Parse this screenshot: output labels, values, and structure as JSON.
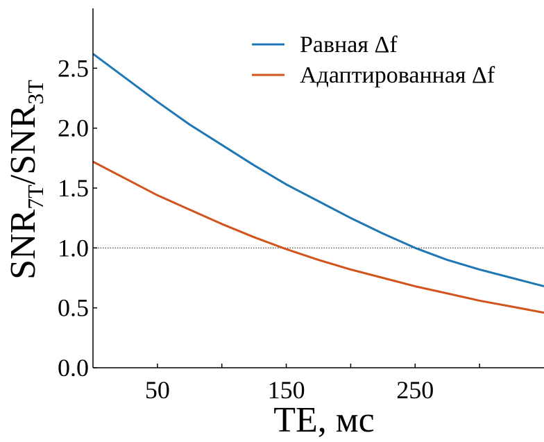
{
  "chart_data": {
    "type": "line",
    "title": "",
    "xlabel": "TE, мс",
    "ylabel": {
      "parts": [
        {
          "text": "SNR",
          "sub": false
        },
        {
          "text": "7T",
          "sub": true
        },
        {
          "text": "/SNR",
          "sub": false
        },
        {
          "text": "3T",
          "sub": true
        }
      ]
    },
    "xlim": [
      0,
      350
    ],
    "ylim": [
      0,
      3.0
    ],
    "x_ticks": [
      50,
      100,
      150,
      200,
      250,
      300
    ],
    "x_tick_labels": [
      "50",
      "",
      "150",
      "",
      "250",
      ""
    ],
    "y_ticks": [
      0,
      0.5,
      1.0,
      1.5,
      2.0,
      2.5
    ],
    "y_tick_labels": [
      "0.0",
      "0.5",
      "1.0",
      "1.5",
      "2.0",
      "2.5"
    ],
    "grid": false,
    "legend_position": "top-right",
    "reference_line": {
      "y": 1.0,
      "style": "dotted",
      "color": "#333333"
    },
    "series": [
      {
        "name": "Равная Δf",
        "color": "#1f77b4",
        "x": [
          0,
          25,
          50,
          75,
          100,
          125,
          150,
          175,
          200,
          225,
          250,
          275,
          300,
          325,
          350
        ],
        "y": [
          2.62,
          2.42,
          2.22,
          2.03,
          1.86,
          1.69,
          1.53,
          1.39,
          1.25,
          1.12,
          1.0,
          0.9,
          0.82,
          0.75,
          0.68
        ]
      },
      {
        "name": "Адаптированная Δf",
        "color": "#d2541d",
        "x": [
          0,
          25,
          50,
          75,
          100,
          125,
          150,
          175,
          200,
          225,
          250,
          275,
          300,
          325,
          350
        ],
        "y": [
          1.72,
          1.58,
          1.44,
          1.32,
          1.2,
          1.09,
          0.99,
          0.9,
          0.82,
          0.75,
          0.68,
          0.62,
          0.56,
          0.51,
          0.46
        ]
      }
    ]
  }
}
